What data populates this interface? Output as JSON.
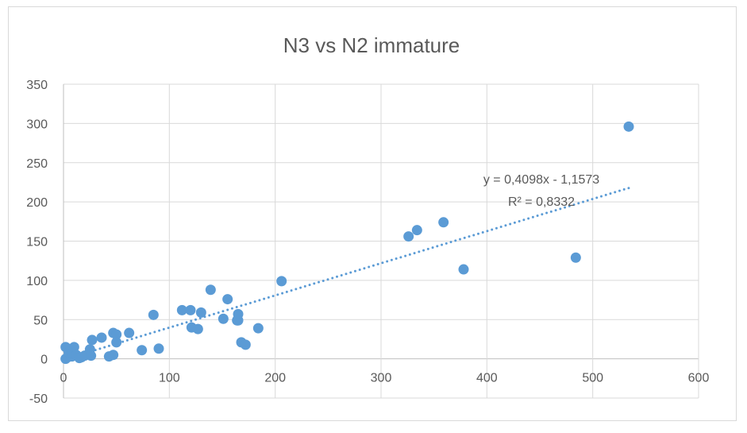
{
  "chart_data": {
    "type": "scatter",
    "title": "N3 vs N2 immature",
    "xlabel": "",
    "ylabel": "",
    "xlim": [
      0,
      600
    ],
    "ylim": [
      -50,
      350
    ],
    "x_ticks": [
      0,
      100,
      200,
      300,
      400,
      500,
      600
    ],
    "y_ticks": [
      -50,
      0,
      50,
      100,
      150,
      200,
      250,
      300,
      350
    ],
    "grid": true,
    "legend": "none",
    "colors": {
      "points": "#5b9bd5",
      "trendline": "#5b9bd5",
      "grid": "#d9d9d9"
    },
    "points": [
      [
        2,
        0
      ],
      [
        4,
        2
      ],
      [
        8,
        3
      ],
      [
        2,
        15
      ],
      [
        10,
        15
      ],
      [
        5,
        8
      ],
      [
        8,
        7
      ],
      [
        12,
        5
      ],
      [
        15,
        1
      ],
      [
        17,
        2
      ],
      [
        20,
        4
      ],
      [
        25,
        12
      ],
      [
        26,
        4
      ],
      [
        27,
        24
      ],
      [
        36,
        27
      ],
      [
        43,
        3
      ],
      [
        47,
        5
      ],
      [
        47,
        33
      ],
      [
        50,
        31
      ],
      [
        50,
        21
      ],
      [
        62,
        33
      ],
      [
        74,
        11
      ],
      [
        85,
        56
      ],
      [
        90,
        13
      ],
      [
        112,
        62
      ],
      [
        120,
        62
      ],
      [
        121,
        40
      ],
      [
        127,
        38
      ],
      [
        130,
        59
      ],
      [
        139,
        88
      ],
      [
        151,
        51
      ],
      [
        155,
        76
      ],
      [
        164,
        49
      ],
      [
        165,
        49
      ],
      [
        165,
        57
      ],
      [
        168,
        21
      ],
      [
        172,
        18
      ],
      [
        184,
        39
      ],
      [
        206,
        99
      ],
      [
        326,
        156
      ],
      [
        334,
        164
      ],
      [
        359,
        174
      ],
      [
        378,
        114
      ],
      [
        484,
        129
      ],
      [
        534,
        296
      ]
    ],
    "trendline": {
      "type": "linear",
      "slope": 0.4098,
      "intercept": -1.1573,
      "x_range": [
        0,
        534
      ],
      "equation_label": "y = 0,4098x - 1,1573",
      "r2_label": "R² = 0,8332"
    }
  }
}
